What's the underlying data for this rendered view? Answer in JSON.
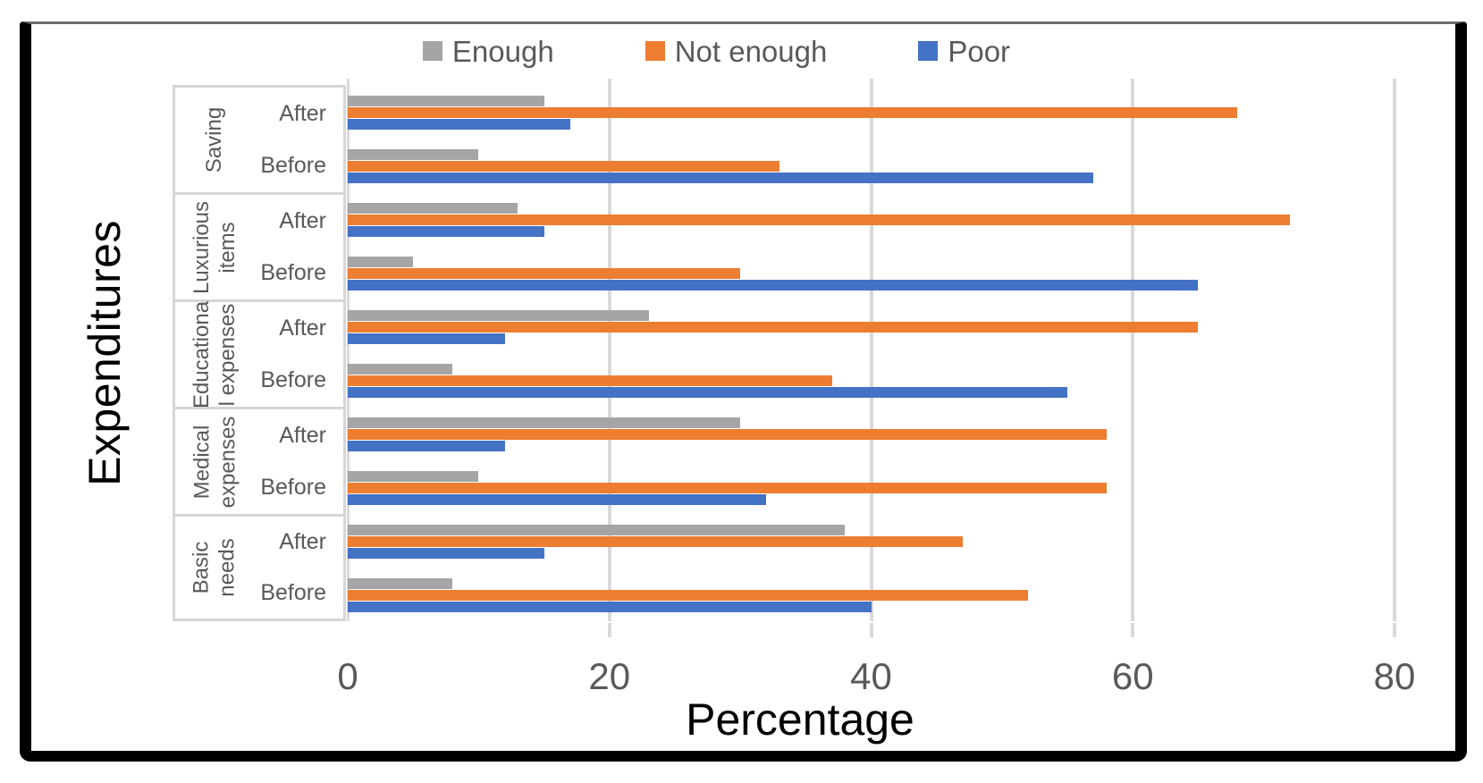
{
  "colors": {
    "enough": "#A5A5A5",
    "not_enough": "#ED7D31",
    "poor": "#4472C4",
    "gridline": "#D9D9D9",
    "axis_text": "#595959",
    "frame": "#000000"
  },
  "chart_data": {
    "type": "bar",
    "orientation": "horizontal",
    "title": "",
    "xlabel": "Percentage",
    "ylabel": "Expenditures",
    "xlim": [
      0,
      80
    ],
    "xticks": [
      0,
      20,
      40,
      60,
      80
    ],
    "grid": true,
    "legend_position": "top",
    "series_order_top_to_bottom": [
      "Enough",
      "Not enough",
      "Poor"
    ],
    "series": [
      {
        "name": "Enough",
        "color": "#A5A5A5"
      },
      {
        "name": "Not enough",
        "color": "#ED7D31"
      },
      {
        "name": "Poor",
        "color": "#4472C4"
      }
    ],
    "groups": [
      {
        "name": "Saving",
        "label_lines": [
          "Saving"
        ],
        "rows": [
          {
            "sub": "After",
            "values": {
              "Enough": 15,
              "Not enough": 68,
              "Poor": 17
            }
          },
          {
            "sub": "Before",
            "values": {
              "Enough": 10,
              "Not enough": 33,
              "Poor": 57
            }
          }
        ]
      },
      {
        "name": "Luxurious items",
        "label_lines": [
          "Luxurious",
          "items"
        ],
        "rows": [
          {
            "sub": "After",
            "values": {
              "Enough": 13,
              "Not enough": 72,
              "Poor": 15
            }
          },
          {
            "sub": "Before",
            "values": {
              "Enough": 5,
              "Not enough": 30,
              "Poor": 65
            }
          }
        ]
      },
      {
        "name": "Educational expenses",
        "label_lines": [
          "Educationa",
          "l expenses"
        ],
        "rows": [
          {
            "sub": "After",
            "values": {
              "Enough": 23,
              "Not enough": 65,
              "Poor": 12
            }
          },
          {
            "sub": "Before",
            "values": {
              "Enough": 8,
              "Not enough": 37,
              "Poor": 55
            }
          }
        ]
      },
      {
        "name": "Medical expenses",
        "label_lines": [
          "Medical",
          "expenses"
        ],
        "rows": [
          {
            "sub": "After",
            "values": {
              "Enough": 30,
              "Not enough": 58,
              "Poor": 12
            }
          },
          {
            "sub": "Before",
            "values": {
              "Enough": 10,
              "Not enough": 58,
              "Poor": 32
            }
          }
        ]
      },
      {
        "name": "Basic needs",
        "label_lines": [
          "Basic",
          "needs"
        ],
        "rows": [
          {
            "sub": "After",
            "values": {
              "Enough": 38,
              "Not enough": 47,
              "Poor": 15
            }
          },
          {
            "sub": "Before",
            "values": {
              "Enough": 8,
              "Not enough": 52,
              "Poor": 40
            }
          }
        ]
      }
    ]
  }
}
